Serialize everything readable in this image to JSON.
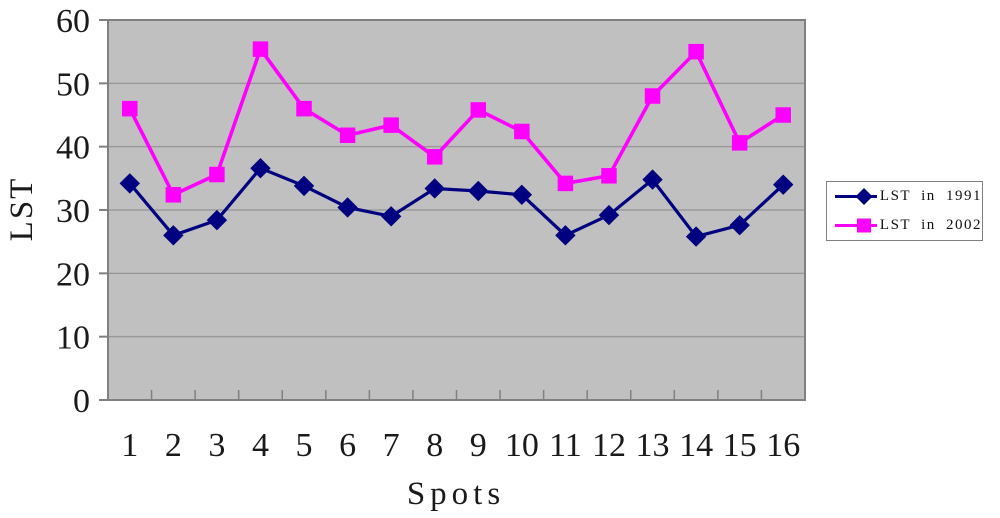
{
  "chart_data": {
    "type": "line",
    "title": "",
    "xlabel": "Spots",
    "ylabel": "LST",
    "categories": [
      "1",
      "2",
      "3",
      "4",
      "5",
      "6",
      "7",
      "8",
      "9",
      "10",
      "11",
      "12",
      "13",
      "14",
      "15",
      "16"
    ],
    "ylim": [
      0,
      60
    ],
    "y_ticks": [
      0,
      10,
      20,
      30,
      40,
      50,
      60
    ],
    "grid": "horizontal",
    "legend_position": "right",
    "series": [
      {
        "name": "LST in 1991",
        "color": "#000080",
        "marker": "diamond",
        "values": [
          34.2,
          26,
          28.4,
          36.6,
          33.8,
          30.4,
          29,
          33.4,
          33,
          32.4,
          26,
          29.2,
          34.8,
          25.8,
          27.6,
          34
        ]
      },
      {
        "name": "LST in 2002",
        "color": "#ff00ff",
        "marker": "square",
        "values": [
          46,
          32.4,
          35.6,
          55.4,
          46,
          41.8,
          43.4,
          38.4,
          45.8,
          42.4,
          34.2,
          35.4,
          48,
          55,
          40.6,
          45
        ]
      }
    ]
  },
  "colors": {
    "plot_background": "#c0c0c0",
    "plot_border": "#808080",
    "gridline": "#9a9a9a",
    "tick": "#808080",
    "axis_text": "#1a1a1a",
    "legend_border": "#808080",
    "legend_background": "#ffffff"
  }
}
